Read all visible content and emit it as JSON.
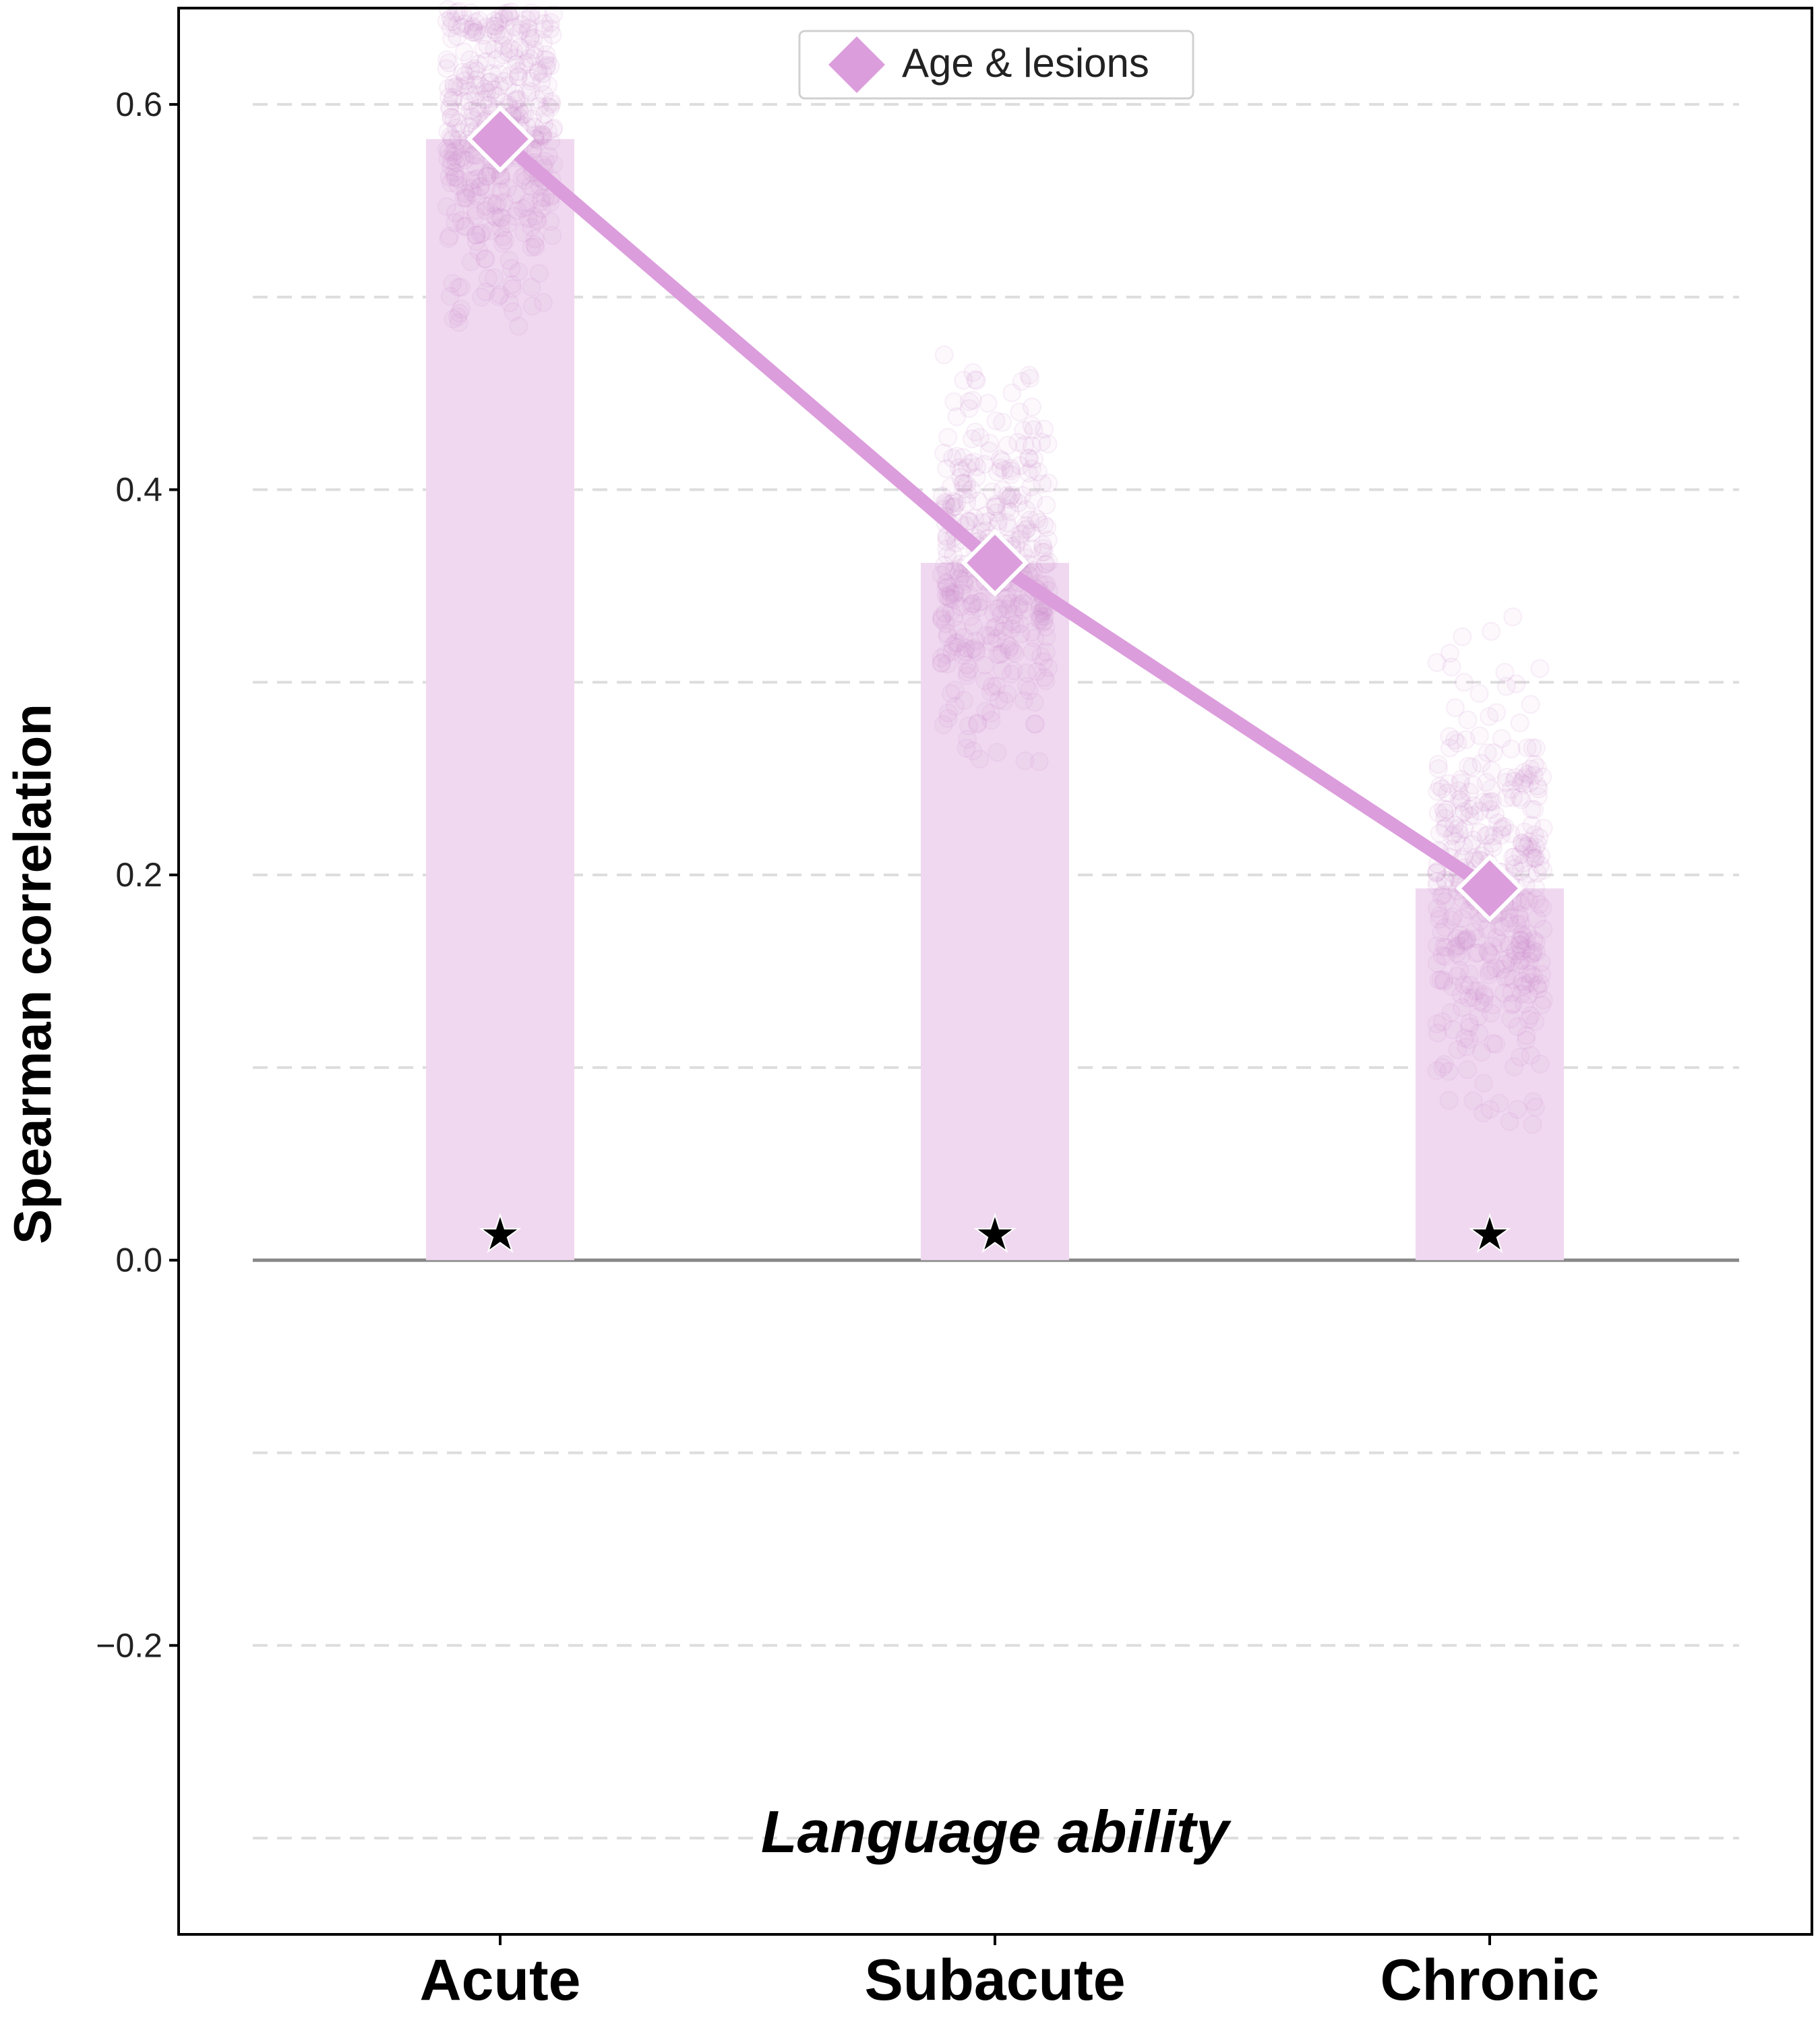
{
  "chart_data": {
    "type": "bar",
    "categories": [
      "Acute",
      "Subacute",
      "Chronic"
    ],
    "series": [
      {
        "name": "Age & lesions",
        "values": [
          0.582,
          0.362,
          0.193
        ]
      }
    ],
    "jitter_points": [
      {
        "category": "Acute",
        "center": 0.582,
        "spread": 0.045,
        "min": 0.44,
        "max": 0.65,
        "count": 400
      },
      {
        "category": "Subacute",
        "center": 0.362,
        "spread": 0.042,
        "min": 0.21,
        "max": 0.49,
        "count": 400
      },
      {
        "category": "Chronic",
        "center": 0.193,
        "spread": 0.052,
        "min": 0.05,
        "max": 0.355,
        "count": 400
      }
    ],
    "significance": [
      "★",
      "★",
      "★"
    ],
    "annotation": "Language ability",
    "xlabel": "",
    "ylabel": "Spearman correlation",
    "ylim": [
      -0.35,
      0.65
    ],
    "yticks": [
      -0.2,
      0.0,
      0.2,
      0.4,
      0.6
    ],
    "ytick_labels": [
      "−0.2",
      "0.0",
      "0.2",
      "0.4",
      "0.6"
    ],
    "grid": true,
    "grid_step": 0.1,
    "legend_position": "top-center",
    "colors": {
      "line": "#dc9ddc",
      "marker": "#dc9ddc",
      "bar": "#f0d9f0",
      "points": "#cf88cf",
      "zero_line": "#888888",
      "grid": "#dddddd"
    }
  }
}
